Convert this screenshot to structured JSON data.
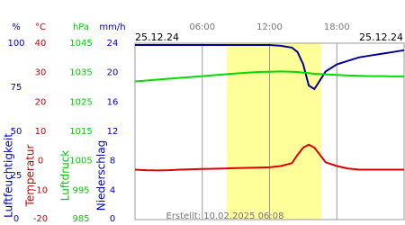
{
  "chart_data": {
    "type": "line",
    "date_left": "25.12.24",
    "date_right": "25.12.24",
    "footer": "Erstellt: 10.02.2025 06:08",
    "xlim": [
      0,
      24
    ],
    "xticks": [
      {
        "value": 6,
        "label": "06:00"
      },
      {
        "value": 12,
        "label": "12:00"
      },
      {
        "value": 18,
        "label": "18:00"
      }
    ],
    "grid": true,
    "daylight": [
      8.2,
      16.6
    ],
    "axes": [
      {
        "unit": "%",
        "label": "Luftfeuchtigkeit",
        "color": "#0000cc",
        "ylim": [
          0,
          100
        ],
        "yticks": [
          0,
          25,
          50,
          75,
          100
        ]
      },
      {
        "unit": "°C",
        "label": "Temperatur",
        "color": "#cc0000",
        "ylim": [
          -20,
          40
        ],
        "yticks": [
          -20,
          -10,
          0,
          10,
          20,
          30,
          40
        ]
      },
      {
        "unit": "hPa",
        "label": "Luftdruck",
        "color": "#00cc00",
        "ylim": [
          985,
          1045
        ],
        "yticks": [
          985,
          995,
          1005,
          1015,
          1025,
          1035,
          1045
        ]
      },
      {
        "unit": "mm/h",
        "label": "Niederschlag",
        "color": "#0000cc",
        "ylim": [
          0,
          24
        ],
        "yticks": [
          0,
          4,
          8,
          12,
          16,
          20,
          24
        ]
      }
    ],
    "x": [
      0,
      1,
      2,
      3,
      4,
      5,
      6,
      7,
      8,
      9,
      10,
      11,
      12,
      13,
      14,
      14.5,
      15,
      15.5,
      16,
      16.5,
      17,
      18,
      19,
      20,
      21,
      22,
      23,
      24
    ],
    "series": [
      {
        "axis": 0,
        "color": "#000099",
        "values": [
          99,
          99,
          99,
          99,
          99,
          99,
          99,
          99,
          99,
          99,
          99,
          99,
          99,
          98.5,
          97.5,
          95,
          88,
          76,
          74,
          79,
          84,
          88,
          90,
          92,
          93,
          94,
          95,
          96
        ]
      },
      {
        "axis": 1,
        "color": "#dd0000",
        "values": [
          -3,
          -3.2,
          -3.3,
          -3.2,
          -3,
          -2.9,
          -2.8,
          -2.7,
          -2.6,
          -2.5,
          -2.4,
          -2.3,
          -2.2,
          -1.8,
          -0.8,
          2,
          4.5,
          5.5,
          4.5,
          2,
          -0.5,
          -1.8,
          -2.6,
          -3,
          -3,
          -3,
          -3,
          -3
        ]
      },
      {
        "axis": 2,
        "color": "#00dd00",
        "values": [
          1032,
          1032.3,
          1032.6,
          1032.9,
          1033.2,
          1033.5,
          1033.8,
          1034.1,
          1034.4,
          1034.7,
          1035,
          1035.2,
          1035.3,
          1035.4,
          1035.3,
          1035.2,
          1035,
          1034.8,
          1034.6,
          1034.5,
          1034.4,
          1034.2,
          1034,
          1033.9,
          1033.8,
          1033.8,
          1033.7,
          1033.7
        ]
      }
    ]
  }
}
